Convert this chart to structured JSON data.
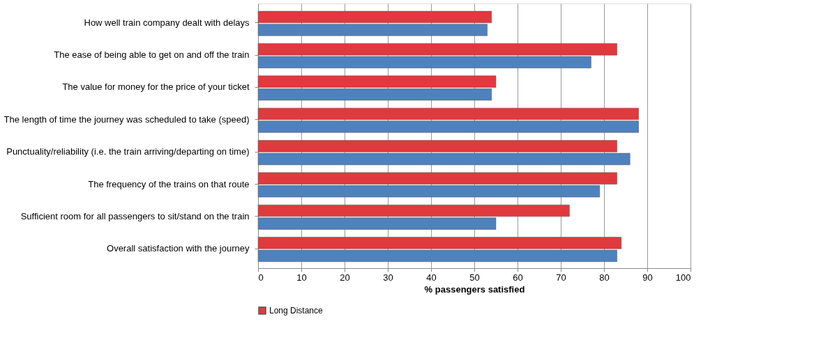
{
  "chart_data": {
    "type": "bar",
    "orientation": "horizontal",
    "xlabel": "% passengers satisfied",
    "categories": [
      "How well train company dealt with delays",
      "The ease of being able to get on and off the train",
      "The value for money for the price of your ticket",
      "The length of time the journey was scheduled to take (speed)",
      "Punctuality/reliability (i.e. the train arriving/departing on time)",
      "The frequency of the trains on that route",
      "Sufficient room for all passengers to sit/stand on the train",
      "Overall satisfaction with the journey"
    ],
    "series": [
      {
        "name": "Long Distance",
        "color": "#e0393e",
        "values": [
          54,
          83,
          55,
          88,
          83,
          83,
          72,
          84
        ]
      },
      {
        "color": "#4f81bd",
        "values": [
          53,
          77,
          54,
          88,
          86,
          79,
          55,
          83
        ]
      }
    ],
    "xlim": [
      0,
      100
    ],
    "xticks": [
      0,
      10,
      20,
      30,
      40,
      50,
      60,
      70,
      80,
      90,
      100
    ],
    "grid": "x",
    "legend": "bottom"
  }
}
